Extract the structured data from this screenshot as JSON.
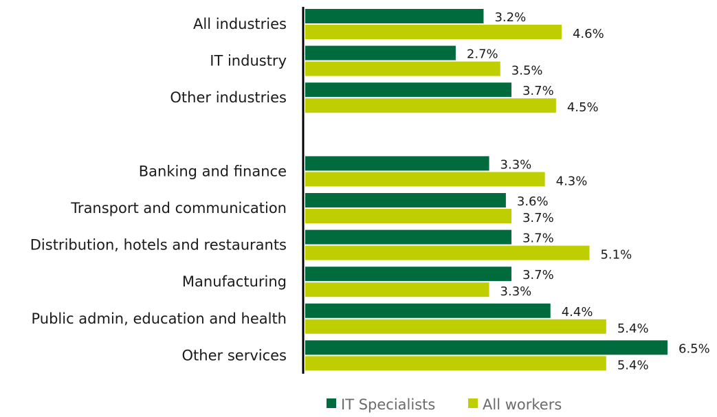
{
  "chart_data": {
    "type": "bar",
    "orientation": "horizontal",
    "categories": [
      "All industries",
      "IT industry",
      "Other industries",
      "",
      "Banking and finance",
      "Transport and communication",
      "Distribution, hotels and restaurants",
      "Manufacturing",
      "Public admin, education and health",
      "Other services"
    ],
    "series": [
      {
        "name": "IT Specialists",
        "color": "#006b3c",
        "values": [
          3.2,
          2.7,
          3.7,
          null,
          3.3,
          3.6,
          3.7,
          3.7,
          4.4,
          6.5
        ],
        "labels": [
          "3.2%",
          "2.7%",
          "3.7%",
          "",
          "3.3%",
          "3.6%",
          "3.7%",
          "3.7%",
          "4.4%",
          "6.5%"
        ]
      },
      {
        "name": "All workers",
        "color": "#bfce00",
        "values": [
          4.6,
          3.5,
          4.5,
          null,
          4.3,
          3.7,
          5.1,
          3.3,
          5.4,
          5.4
        ],
        "labels": [
          "4.6%",
          "3.5%",
          "4.5%",
          "",
          "4.3%",
          "3.7%",
          "5.1%",
          "3.3%",
          "5.4%",
          "5.4%"
        ]
      }
    ],
    "title": "",
    "xlabel": "",
    "ylabel": "",
    "xlim": [
      0,
      6.5
    ],
    "grid": false,
    "legend": "bottom-center"
  }
}
